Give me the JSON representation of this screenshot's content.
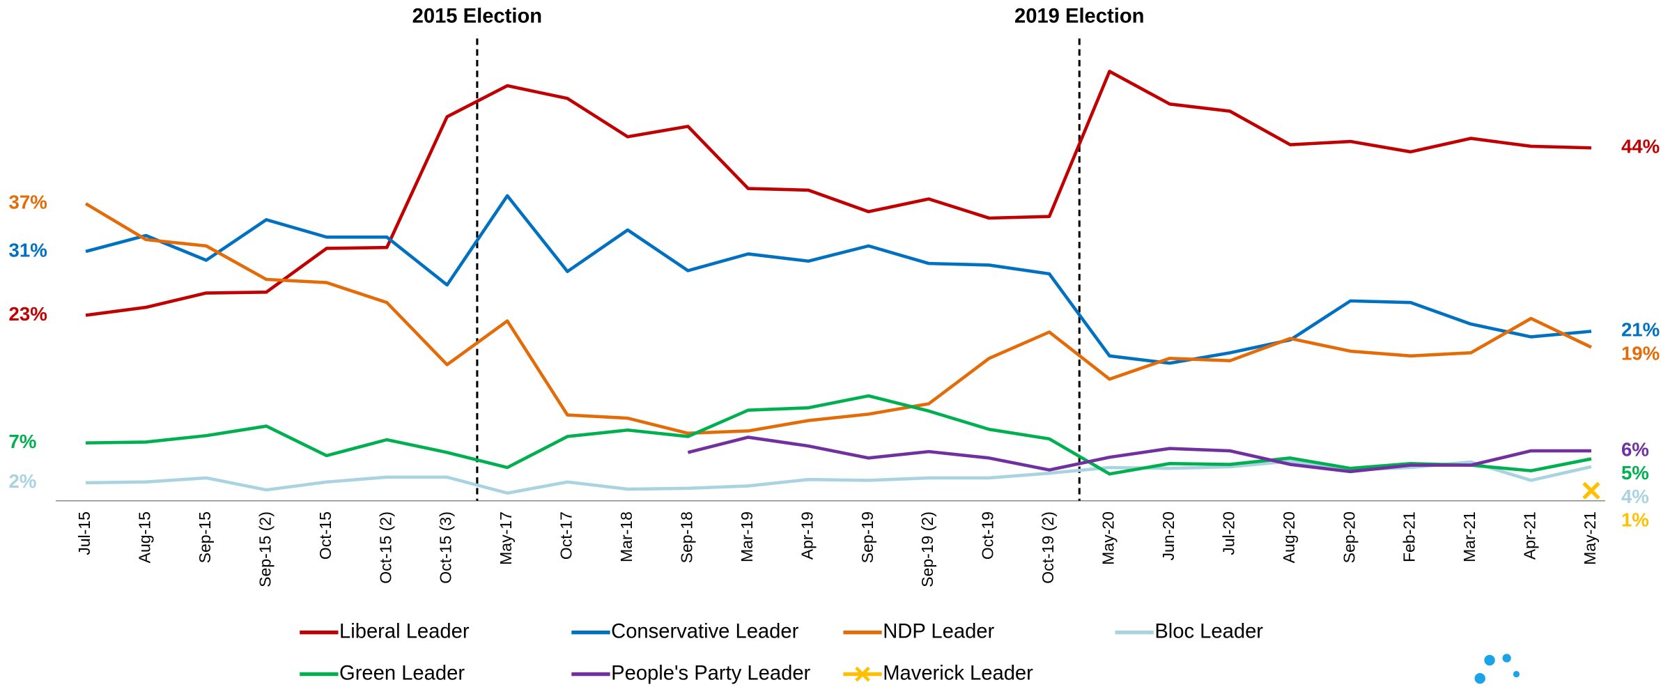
{
  "chart_data": {
    "type": "line",
    "annotations": [
      "2015 Election",
      "2019 Election"
    ],
    "categories": [
      "Jul-15",
      "Aug-15",
      "Sep-15",
      "Sep-15 (2)",
      "Oct-15",
      "Oct-15 (2)",
      "Oct-15 (3)",
      "May-17",
      "Oct-17",
      "Mar-18",
      "Sep-18",
      "Mar-19",
      "Apr-19",
      "Sep-19",
      "Sep-19 (2)",
      "Oct-19",
      "Oct-19 (2)",
      "May-20",
      "Jun-20",
      "Jul-20",
      "Aug-20",
      "Sep-20",
      "Feb-21",
      "Mar-21",
      "Apr-21",
      "May-21"
    ],
    "ylim": [
      0,
      60
    ],
    "series": [
      {
        "name": "Liberal Leader",
        "color": "#c00000",
        "values": [
          23,
          24.0,
          25.8,
          25.9,
          31.4,
          31.5,
          47.9,
          51.8,
          50.2,
          45.4,
          46.7,
          38.9,
          38.7,
          36.0,
          37.6,
          35.2,
          35.4,
          53.6,
          49.5,
          48.6,
          44.4,
          44.8,
          43.5,
          45.2,
          44.2,
          44
        ],
        "value_labels": [
          "23%",
          null,
          null,
          null,
          null,
          null,
          null,
          null,
          null,
          null,
          null,
          null,
          null,
          null,
          null,
          null,
          null,
          null,
          null,
          null,
          null,
          null,
          null,
          null,
          null,
          "44%"
        ]
      },
      {
        "name": "Conservative Leader",
        "color": "#0070c0",
        "values": [
          31,
          33.0,
          29.9,
          35.0,
          32.8,
          32.8,
          26.8,
          38.0,
          28.5,
          33.7,
          28.6,
          30.7,
          29.8,
          31.7,
          29.5,
          29.3,
          28.2,
          17.9,
          17.0,
          18.3,
          19.9,
          24.8,
          24.6,
          21.9,
          20.3,
          21
        ],
        "value_labels": [
          "31%",
          null,
          null,
          null,
          null,
          null,
          null,
          null,
          null,
          null,
          null,
          null,
          null,
          null,
          null,
          null,
          null,
          null,
          null,
          null,
          null,
          null,
          null,
          null,
          null,
          "21%"
        ]
      },
      {
        "name": "NDP Leader",
        "color": "#e36c09",
        "values": [
          37,
          32.5,
          31.7,
          27.5,
          27.1,
          24.6,
          16.8,
          22.3,
          10.5,
          10.1,
          8.2,
          8.5,
          9.8,
          10.6,
          11.9,
          17.6,
          20.9,
          15.0,
          17.6,
          17.3,
          20.1,
          18.5,
          17.9,
          18.3,
          22.6,
          19
        ],
        "value_labels": [
          "37%",
          null,
          null,
          null,
          null,
          null,
          null,
          null,
          null,
          null,
          null,
          null,
          null,
          null,
          null,
          null,
          null,
          null,
          null,
          null,
          null,
          null,
          null,
          null,
          null,
          "19%"
        ]
      },
      {
        "name": "Bloc Leader",
        "color": "#a9d3e0",
        "values": [
          2,
          2.1,
          2.6,
          1.1,
          2.1,
          2.7,
          2.7,
          0.7,
          2.1,
          1.2,
          1.3,
          1.6,
          2.4,
          2.3,
          2.6,
          2.6,
          3.2,
          3.9,
          3.8,
          4.0,
          4.7,
          3.6,
          3.9,
          4.6,
          2.3,
          4
        ],
        "value_labels": [
          "2%",
          null,
          null,
          null,
          null,
          null,
          null,
          null,
          null,
          null,
          null,
          null,
          null,
          null,
          null,
          null,
          null,
          null,
          null,
          null,
          null,
          null,
          null,
          null,
          null,
          "4%"
        ]
      },
      {
        "name": "Green Leader",
        "color": "#00b050",
        "values": [
          7,
          7.1,
          7.9,
          9.1,
          5.4,
          7.4,
          5.8,
          3.9,
          7.8,
          8.6,
          7.8,
          11.1,
          11.4,
          12.9,
          11.0,
          8.7,
          7.5,
          3.1,
          4.4,
          4.3,
          5.1,
          3.8,
          4.4,
          4.2,
          3.5,
          5
        ],
        "value_labels": [
          "7%",
          null,
          null,
          null,
          null,
          null,
          null,
          null,
          null,
          null,
          null,
          null,
          null,
          null,
          null,
          null,
          null,
          null,
          null,
          null,
          null,
          null,
          null,
          null,
          null,
          "5%"
        ]
      },
      {
        "name": "People's Party Leader",
        "color": "#7030a0",
        "values": [
          null,
          null,
          null,
          null,
          null,
          null,
          null,
          null,
          null,
          null,
          5.8,
          7.7,
          6.6,
          5.1,
          5.9,
          5.1,
          3.6,
          5.2,
          6.3,
          6.0,
          4.3,
          3.4,
          4.2,
          4.2,
          6.0,
          6
        ],
        "value_labels": [
          null,
          null,
          null,
          null,
          null,
          null,
          null,
          null,
          null,
          null,
          null,
          null,
          null,
          null,
          null,
          null,
          null,
          null,
          null,
          null,
          null,
          null,
          null,
          null,
          null,
          "6%"
        ]
      },
      {
        "name": "Maverick Leader",
        "color": "#ffc000",
        "marker": "x",
        "values": [
          null,
          null,
          null,
          null,
          null,
          null,
          null,
          null,
          null,
          null,
          null,
          null,
          null,
          null,
          null,
          null,
          null,
          null,
          null,
          null,
          null,
          null,
          null,
          null,
          null,
          1
        ],
        "value_labels": [
          null,
          null,
          null,
          null,
          null,
          null,
          null,
          null,
          null,
          null,
          null,
          null,
          null,
          null,
          null,
          null,
          null,
          null,
          null,
          null,
          null,
          null,
          null,
          null,
          null,
          "1%"
        ]
      }
    ]
  }
}
